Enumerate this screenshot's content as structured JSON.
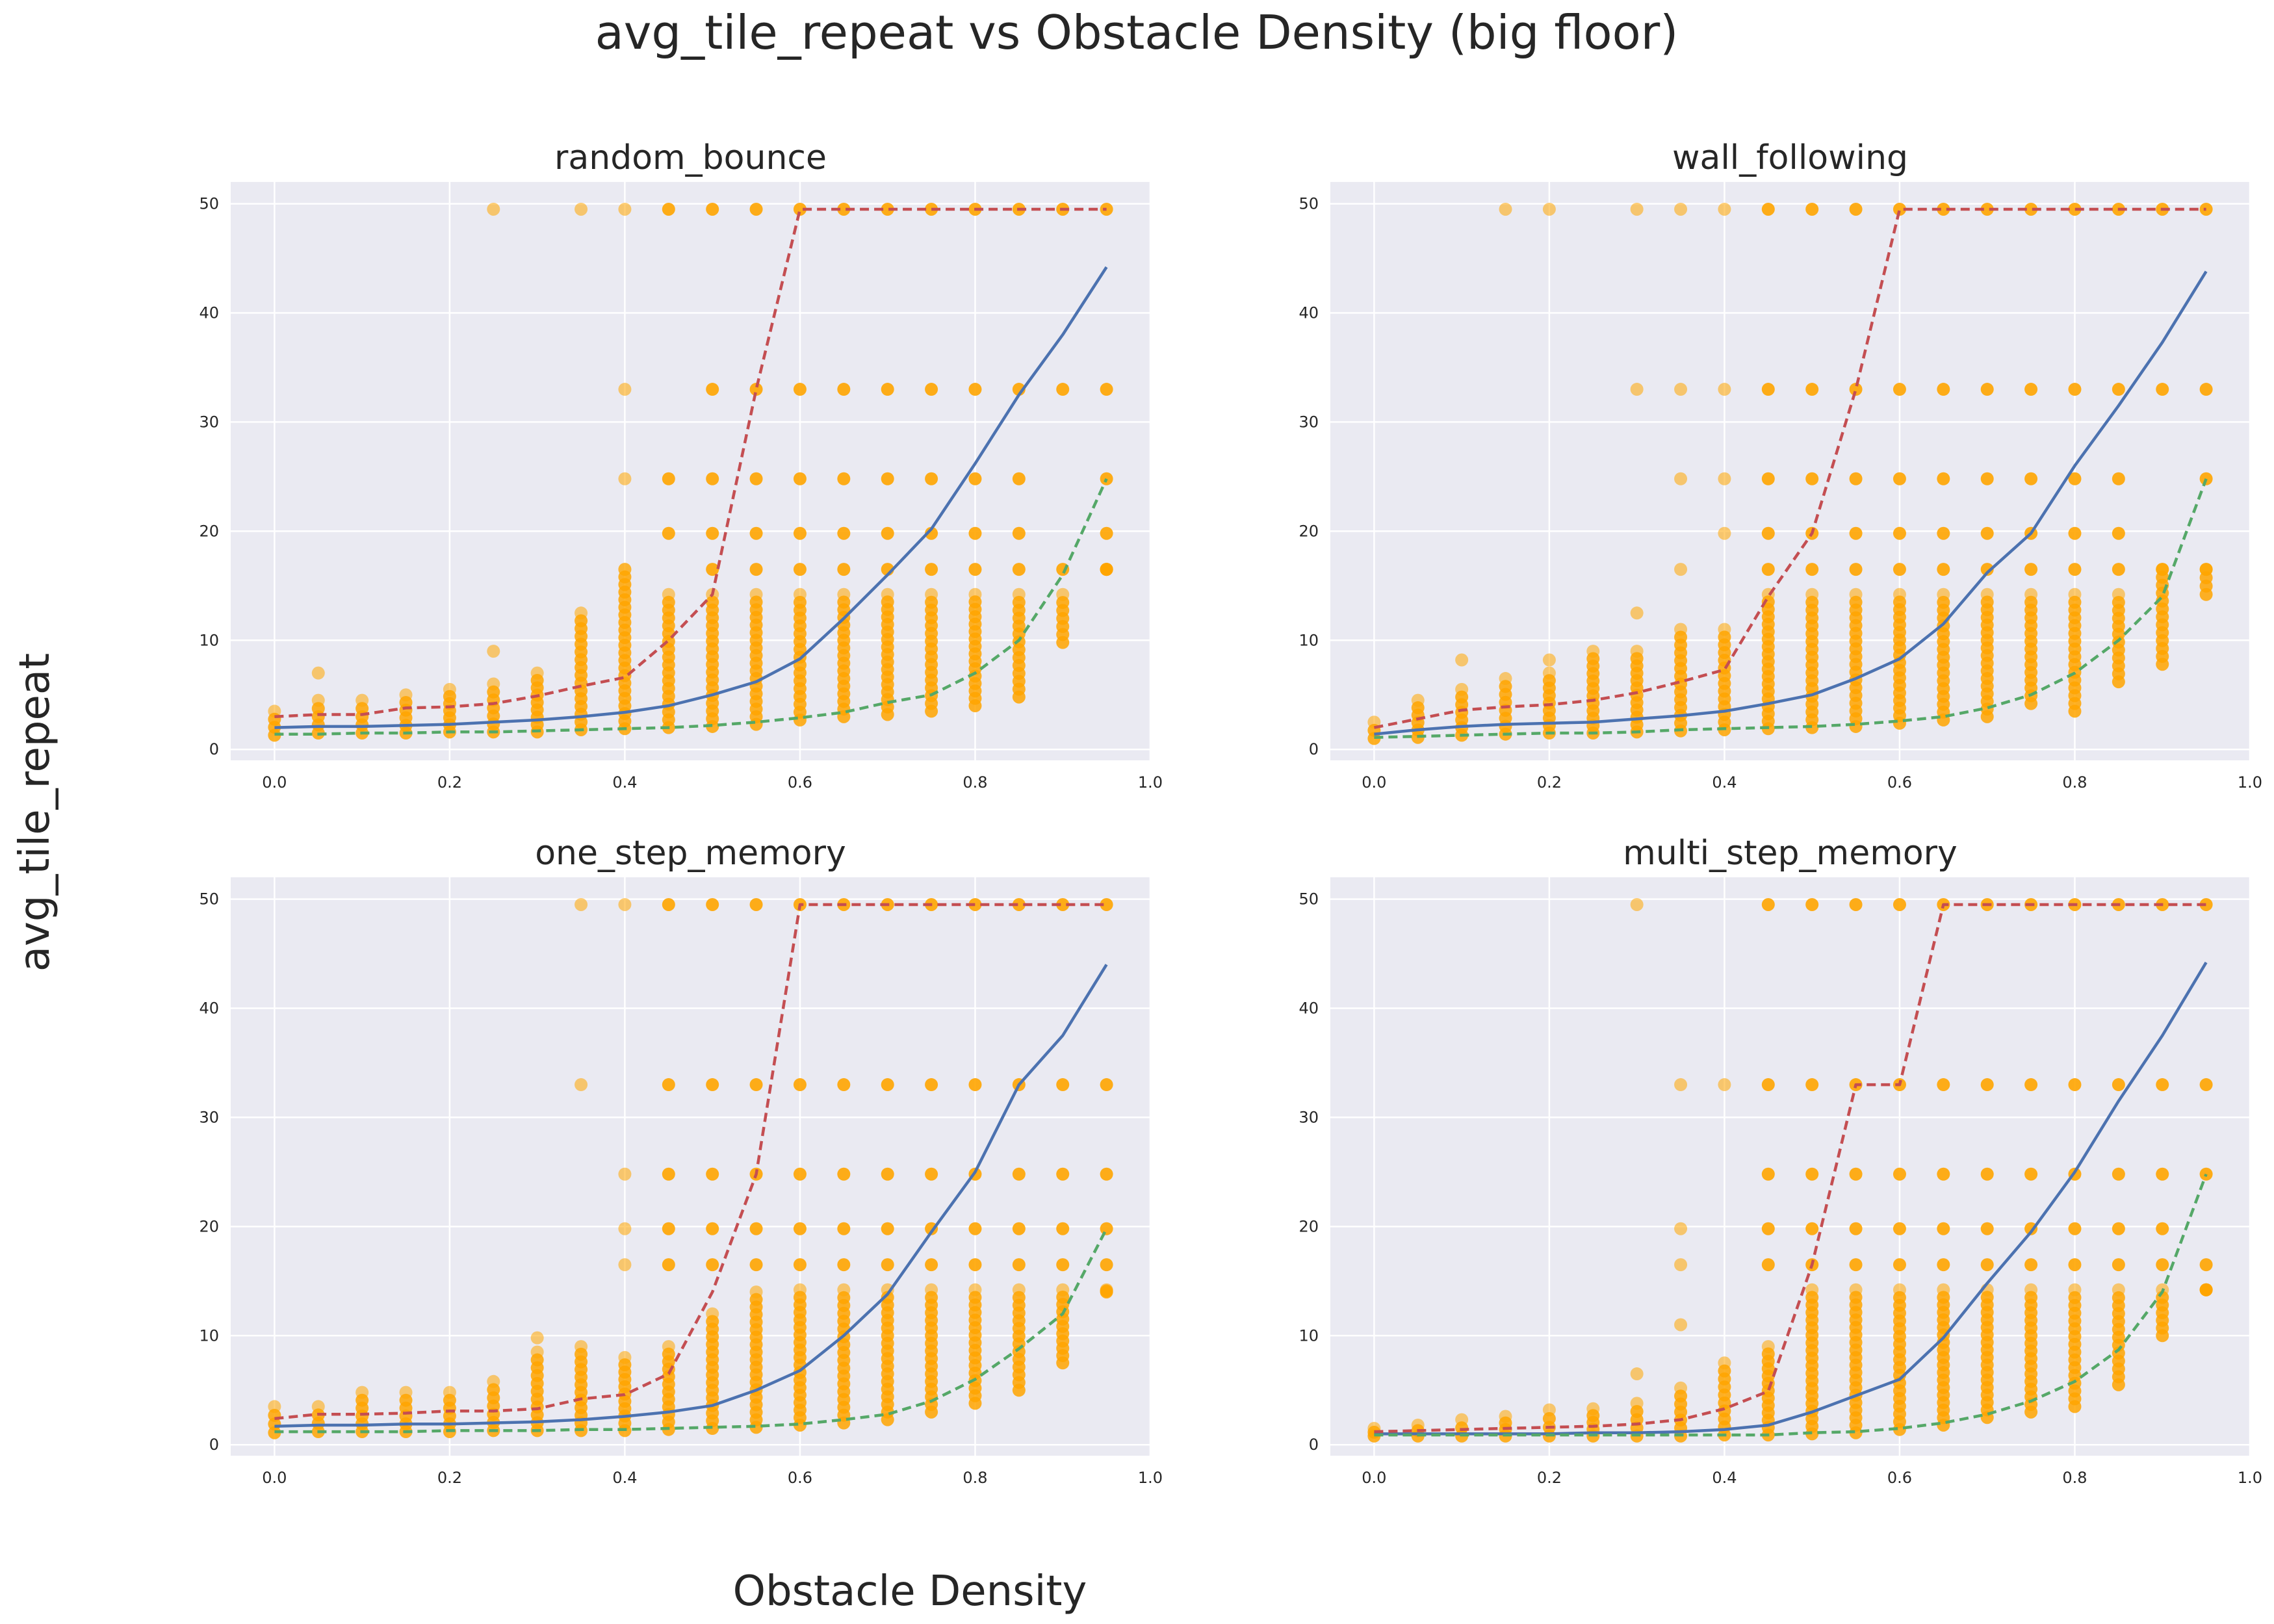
{
  "figure": {
    "suptitle": "avg_tile_repeat vs Obstacle Density (big floor)",
    "xlabel": "Obstacle Density",
    "ylabel": "avg_tile_repeat"
  },
  "colors": {
    "background": "#ffffff",
    "axes_face": "#eaeaf2",
    "grid": "#ffffff",
    "scatter": "#ffa500",
    "median_line": "#4c72b0",
    "upper_line": "#c44e52",
    "lower_line": "#55a868"
  },
  "chart_data": [
    {
      "type": "scatter",
      "title": "random_bounce",
      "xlim": [
        -0.05,
        1.0
      ],
      "ylim": [
        -1,
        52
      ],
      "xticks": [
        "0.0",
        "0.2",
        "0.4",
        "0.6",
        "0.8",
        "1.0"
      ],
      "yticks": [
        "0",
        "10",
        "20",
        "30",
        "40",
        "50"
      ],
      "grid": true,
      "x": [
        0.0,
        0.05,
        0.1,
        0.15,
        0.2,
        0.25,
        0.3,
        0.35,
        0.4,
        0.45,
        0.5,
        0.55,
        0.6,
        0.65,
        0.7,
        0.75,
        0.8,
        0.85,
        0.9,
        0.95
      ],
      "series": [
        {
          "role": "median",
          "style": "solid",
          "values": [
            2.0,
            2.1,
            2.1,
            2.2,
            2.3,
            2.5,
            2.7,
            3.0,
            3.4,
            4.0,
            5.0,
            6.2,
            8.3,
            12.0,
            16.0,
            20.2,
            26.2,
            32.5,
            38.0,
            44.2
          ]
        },
        {
          "role": "upper",
          "style": "dashed",
          "values": [
            3.0,
            3.2,
            3.2,
            3.8,
            3.9,
            4.2,
            4.9,
            5.8,
            6.6,
            10.0,
            14.2,
            33.0,
            49.5,
            49.5,
            49.5,
            49.5,
            49.5,
            49.5,
            49.5,
            49.5
          ]
        },
        {
          "role": "lower",
          "style": "dashed",
          "values": [
            1.4,
            1.4,
            1.5,
            1.5,
            1.6,
            1.6,
            1.7,
            1.8,
            1.9,
            2.0,
            2.2,
            2.5,
            2.9,
            3.4,
            4.3,
            5.0,
            7.0,
            10.0,
            16.0,
            24.8
          ]
        }
      ],
      "points_top": [
        3.5,
        4.5,
        4.5,
        5.0,
        5.5,
        6.0,
        7.0,
        12.5,
        16.5,
        14.2,
        14.2,
        14.2,
        14.2,
        14.2,
        14.2,
        14.2,
        14.2,
        14.2,
        14.2,
        16.5
      ],
      "points_bottom": [
        1.3,
        1.5,
        1.5,
        1.5,
        1.6,
        1.6,
        1.6,
        1.8,
        1.9,
        2.0,
        2.1,
        2.3,
        2.7,
        3.0,
        3.2,
        3.5,
        4.0,
        4.8,
        9.8,
        16.5
      ],
      "points_levels": [
        {
          "y": 49.5,
          "x": [
            0.25,
            0.35,
            0.4,
            0.45,
            0.5,
            0.55,
            0.6,
            0.65,
            0.7,
            0.75,
            0.8,
            0.85,
            0.9,
            0.95
          ]
        },
        {
          "y": 33.0,
          "x": [
            0.4,
            0.5,
            0.55,
            0.6,
            0.65,
            0.7,
            0.75,
            0.8,
            0.85,
            0.9,
            0.95
          ]
        },
        {
          "y": 24.8,
          "x": [
            0.4,
            0.45,
            0.5,
            0.55,
            0.6,
            0.65,
            0.7,
            0.75,
            0.8,
            0.85,
            0.95
          ]
        },
        {
          "y": 19.8,
          "x": [
            0.45,
            0.5,
            0.55,
            0.6,
            0.65,
            0.7,
            0.75,
            0.8,
            0.85,
            0.95
          ]
        },
        {
          "y": 16.5,
          "x": [
            0.4,
            0.5,
            0.55,
            0.6,
            0.65,
            0.7,
            0.75,
            0.8,
            0.85,
            0.9,
            0.95
          ]
        },
        {
          "y": 9.0,
          "x": [
            0.25
          ]
        },
        {
          "y": 7.0,
          "x": [
            0.05
          ]
        }
      ]
    },
    {
      "type": "scatter",
      "title": "wall_following",
      "xlim": [
        -0.05,
        1.0
      ],
      "ylim": [
        -1,
        52
      ],
      "xticks": [
        "0.0",
        "0.2",
        "0.4",
        "0.6",
        "0.8",
        "1.0"
      ],
      "yticks": [
        "0",
        "10",
        "20",
        "30",
        "40",
        "50"
      ],
      "grid": true,
      "x": [
        0.0,
        0.05,
        0.1,
        0.15,
        0.2,
        0.25,
        0.3,
        0.35,
        0.4,
        0.45,
        0.5,
        0.55,
        0.6,
        0.65,
        0.7,
        0.75,
        0.8,
        0.85,
        0.9,
        0.95
      ],
      "series": [
        {
          "role": "median",
          "style": "solid",
          "values": [
            1.4,
            1.8,
            2.1,
            2.3,
            2.4,
            2.5,
            2.8,
            3.1,
            3.5,
            4.2,
            5.0,
            6.5,
            8.3,
            11.5,
            16.2,
            19.8,
            26.0,
            31.5,
            37.3,
            43.8
          ]
        },
        {
          "role": "upper",
          "style": "dashed",
          "values": [
            2.0,
            2.8,
            3.6,
            3.9,
            4.1,
            4.5,
            5.2,
            6.2,
            7.3,
            14.0,
            19.8,
            33.0,
            49.5,
            49.5,
            49.5,
            49.5,
            49.5,
            49.5,
            49.5,
            49.5
          ]
        },
        {
          "role": "lower",
          "style": "dashed",
          "values": [
            1.1,
            1.2,
            1.3,
            1.4,
            1.5,
            1.5,
            1.6,
            1.8,
            1.9,
            2.0,
            2.1,
            2.3,
            2.6,
            3.0,
            3.8,
            5.0,
            7.0,
            10.0,
            14.0,
            24.8
          ]
        }
      ],
      "points_top": [
        2.5,
        4.5,
        5.5,
        6.5,
        7.0,
        9.0,
        9.0,
        11.0,
        11.0,
        14.2,
        14.2,
        14.2,
        14.2,
        14.2,
        14.2,
        14.2,
        14.2,
        14.2,
        16.5,
        16.5
      ],
      "points_bottom": [
        1.0,
        1.1,
        1.3,
        1.4,
        1.5,
        1.5,
        1.6,
        1.7,
        1.8,
        1.9,
        2.0,
        2.1,
        2.4,
        2.7,
        3.0,
        4.2,
        3.5,
        6.2,
        7.8,
        14.2
      ],
      "points_levels": [
        {
          "y": 49.5,
          "x": [
            0.15,
            0.2,
            0.3,
            0.35,
            0.4,
            0.45,
            0.5,
            0.55,
            0.6,
            0.65,
            0.7,
            0.75,
            0.8,
            0.85,
            0.9,
            0.95
          ]
        },
        {
          "y": 33.0,
          "x": [
            0.3,
            0.35,
            0.4,
            0.45,
            0.5,
            0.55,
            0.6,
            0.65,
            0.7,
            0.75,
            0.8,
            0.85,
            0.9,
            0.95
          ]
        },
        {
          "y": 24.8,
          "x": [
            0.35,
            0.4,
            0.45,
            0.5,
            0.55,
            0.6,
            0.65,
            0.7,
            0.75,
            0.8,
            0.85,
            0.95
          ]
        },
        {
          "y": 19.8,
          "x": [
            0.4,
            0.45,
            0.5,
            0.55,
            0.6,
            0.65,
            0.7,
            0.75,
            0.8,
            0.85
          ]
        },
        {
          "y": 16.5,
          "x": [
            0.35,
            0.45,
            0.5,
            0.55,
            0.6,
            0.65,
            0.7,
            0.75,
            0.8,
            0.85,
            0.9,
            0.95
          ]
        },
        {
          "y": 12.5,
          "x": [
            0.3
          ]
        },
        {
          "y": 8.2,
          "x": [
            0.1,
            0.2
          ]
        }
      ]
    },
    {
      "type": "scatter",
      "title": "one_step_memory",
      "xlim": [
        -0.05,
        1.0
      ],
      "ylim": [
        -1,
        52
      ],
      "xticks": [
        "0.0",
        "0.2",
        "0.4",
        "0.6",
        "0.8",
        "1.0"
      ],
      "yticks": [
        "0",
        "10",
        "20",
        "30",
        "40",
        "50"
      ],
      "grid": true,
      "x": [
        0.0,
        0.05,
        0.1,
        0.15,
        0.2,
        0.25,
        0.3,
        0.35,
        0.4,
        0.45,
        0.5,
        0.55,
        0.6,
        0.65,
        0.7,
        0.75,
        0.8,
        0.85,
        0.9,
        0.95
      ],
      "series": [
        {
          "role": "median",
          "style": "solid",
          "values": [
            1.7,
            1.8,
            1.8,
            1.9,
            1.9,
            2.0,
            2.1,
            2.3,
            2.6,
            3.0,
            3.6,
            5.0,
            6.8,
            10.0,
            13.8,
            19.5,
            25.0,
            33.0,
            37.5,
            44.0
          ]
        },
        {
          "role": "upper",
          "style": "dashed",
          "values": [
            2.4,
            2.8,
            2.8,
            2.9,
            3.1,
            3.1,
            3.3,
            4.2,
            4.6,
            6.5,
            14.0,
            24.8,
            49.5,
            49.5,
            49.5,
            49.5,
            49.5,
            49.5,
            49.5,
            49.5
          ]
        },
        {
          "role": "lower",
          "style": "dashed",
          "values": [
            1.2,
            1.2,
            1.2,
            1.2,
            1.3,
            1.3,
            1.3,
            1.4,
            1.4,
            1.5,
            1.6,
            1.7,
            1.9,
            2.3,
            2.8,
            4.0,
            6.0,
            8.8,
            12.0,
            19.8
          ]
        }
      ],
      "points_top": [
        3.5,
        3.5,
        4.8,
        4.8,
        4.8,
        5.8,
        8.5,
        9.0,
        8.0,
        9.0,
        12.0,
        14.0,
        14.2,
        14.2,
        14.2,
        14.2,
        14.2,
        14.2,
        14.2,
        14.2
      ],
      "points_bottom": [
        1.1,
        1.2,
        1.2,
        1.2,
        1.2,
        1.3,
        1.3,
        1.3,
        1.3,
        1.4,
        1.5,
        1.6,
        1.8,
        2.0,
        2.3,
        3.0,
        3.8,
        5.0,
        7.5,
        14.0
      ],
      "points_levels": [
        {
          "y": 49.5,
          "x": [
            0.35,
            0.4,
            0.45,
            0.5,
            0.55,
            0.6,
            0.65,
            0.7,
            0.75,
            0.8,
            0.85,
            0.9,
            0.95
          ]
        },
        {
          "y": 33.0,
          "x": [
            0.35,
            0.45,
            0.5,
            0.55,
            0.6,
            0.65,
            0.7,
            0.75,
            0.8,
            0.85,
            0.9,
            0.95
          ]
        },
        {
          "y": 24.8,
          "x": [
            0.4,
            0.45,
            0.5,
            0.55,
            0.6,
            0.65,
            0.7,
            0.75,
            0.8,
            0.85,
            0.9,
            0.95
          ]
        },
        {
          "y": 19.8,
          "x": [
            0.4,
            0.45,
            0.5,
            0.55,
            0.6,
            0.65,
            0.7,
            0.75,
            0.8,
            0.85,
            0.9,
            0.95
          ]
        },
        {
          "y": 16.5,
          "x": [
            0.4,
            0.45,
            0.5,
            0.55,
            0.6,
            0.65,
            0.7,
            0.75,
            0.8,
            0.85,
            0.9,
            0.95
          ]
        },
        {
          "y": 9.8,
          "x": [
            0.3
          ]
        }
      ]
    },
    {
      "type": "scatter",
      "title": "multi_step_memory",
      "xlim": [
        -0.05,
        1.0
      ],
      "ylim": [
        -1,
        52
      ],
      "xticks": [
        "0.0",
        "0.2",
        "0.4",
        "0.6",
        "0.8",
        "1.0"
      ],
      "yticks": [
        "0",
        "10",
        "20",
        "30",
        "40",
        "50"
      ],
      "grid": true,
      "x": [
        0.0,
        0.05,
        0.1,
        0.15,
        0.2,
        0.25,
        0.3,
        0.35,
        0.4,
        0.45,
        0.5,
        0.55,
        0.6,
        0.65,
        0.7,
        0.75,
        0.8,
        0.85,
        0.9,
        0.95
      ],
      "series": [
        {
          "role": "median",
          "style": "solid",
          "values": [
            1.0,
            1.0,
            1.0,
            1.0,
            1.0,
            1.1,
            1.1,
            1.2,
            1.4,
            1.8,
            3.0,
            4.5,
            6.0,
            9.8,
            14.8,
            19.5,
            25.0,
            31.5,
            37.5,
            44.2
          ]
        },
        {
          "role": "upper",
          "style": "dashed",
          "values": [
            1.2,
            1.3,
            1.4,
            1.5,
            1.6,
            1.7,
            1.9,
            2.3,
            3.3,
            4.9,
            16.5,
            33.0,
            33.0,
            49.5,
            49.5,
            49.5,
            49.5,
            49.5,
            49.5,
            49.5
          ]
        },
        {
          "role": "lower",
          "style": "dashed",
          "values": [
            0.9,
            0.9,
            0.9,
            0.9,
            0.9,
            0.9,
            0.9,
            0.9,
            0.9,
            0.9,
            1.1,
            1.2,
            1.5,
            2.0,
            2.8,
            4.0,
            5.8,
            8.7,
            14.0,
            24.8
          ]
        }
      ],
      "points_top": [
        1.5,
        1.8,
        2.3,
        2.6,
        3.2,
        3.3,
        3.8,
        5.2,
        7.5,
        9.0,
        14.2,
        14.2,
        14.2,
        14.2,
        14.2,
        14.2,
        14.2,
        14.2,
        14.2,
        14.2
      ],
      "points_bottom": [
        0.8,
        0.8,
        0.8,
        0.8,
        0.8,
        0.8,
        0.8,
        0.8,
        0.9,
        0.9,
        1.0,
        1.1,
        1.4,
        1.8,
        2.5,
        3.0,
        3.5,
        5.5,
        10.0,
        14.2
      ],
      "points_levels": [
        {
          "y": 49.5,
          "x": [
            0.3,
            0.45,
            0.5,
            0.55,
            0.6,
            0.65,
            0.7,
            0.75,
            0.8,
            0.85,
            0.9,
            0.95
          ]
        },
        {
          "y": 33.0,
          "x": [
            0.35,
            0.4,
            0.45,
            0.5,
            0.55,
            0.6,
            0.65,
            0.7,
            0.75,
            0.8,
            0.85,
            0.9,
            0.95
          ]
        },
        {
          "y": 24.8,
          "x": [
            0.45,
            0.5,
            0.55,
            0.6,
            0.65,
            0.7,
            0.75,
            0.8,
            0.85,
            0.9,
            0.95
          ]
        },
        {
          "y": 19.8,
          "x": [
            0.35,
            0.45,
            0.5,
            0.55,
            0.6,
            0.65,
            0.7,
            0.75,
            0.8,
            0.85,
            0.9
          ]
        },
        {
          "y": 16.5,
          "x": [
            0.35,
            0.45,
            0.5,
            0.55,
            0.6,
            0.65,
            0.7,
            0.75,
            0.8,
            0.85,
            0.9,
            0.95
          ]
        },
        {
          "y": 11.0,
          "x": [
            0.35
          ]
        },
        {
          "y": 6.5,
          "x": [
            0.3
          ]
        }
      ]
    }
  ]
}
